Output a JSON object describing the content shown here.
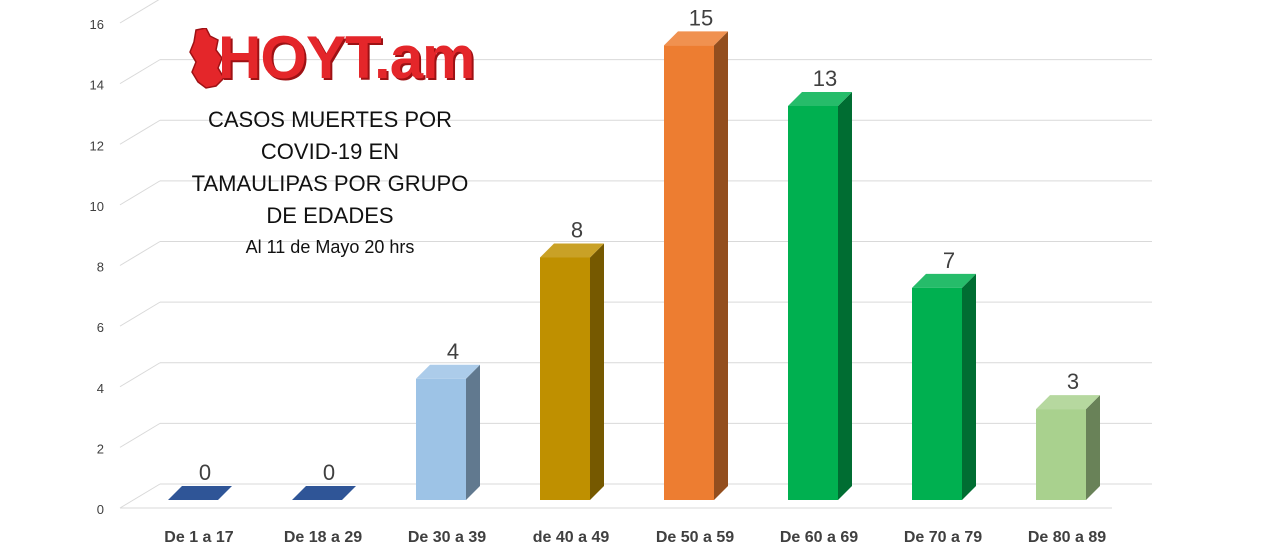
{
  "logo": {
    "text": "HOYT.am",
    "color": "#e4262a"
  },
  "title_lines": [
    "CASOS MUERTES POR",
    "COVID-19 EN",
    "TAMAULIPAS POR GRUPO",
    "DE EDADES"
  ],
  "subtitle": "Al 11 de Mayo 20 hrs",
  "chart_data": {
    "type": "bar",
    "categories": [
      "De 1 a 17",
      "De 18 a 29",
      "De 30 a 39",
      "de 40 a 49",
      "De 50 a 59",
      "De 60 a 69",
      "De 70 a 79",
      "De 80 a 89"
    ],
    "values": [
      0,
      0,
      4,
      8,
      15,
      13,
      7,
      3
    ],
    "data_labels": [
      "0",
      "0",
      "4",
      "8",
      "15",
      "13",
      "7",
      "3"
    ],
    "colors": [
      "#2f5597",
      "#2f5597",
      "#9dc3e6",
      "#bf9000",
      "#ed7d31",
      "#00b050",
      "#00b050",
      "#a9d18e"
    ],
    "ylim": [
      0,
      16
    ],
    "yticks": [
      "0",
      "2",
      "4",
      "6",
      "8",
      "10",
      "12",
      "14",
      "16"
    ],
    "grid": true,
    "style": "3d-column"
  }
}
